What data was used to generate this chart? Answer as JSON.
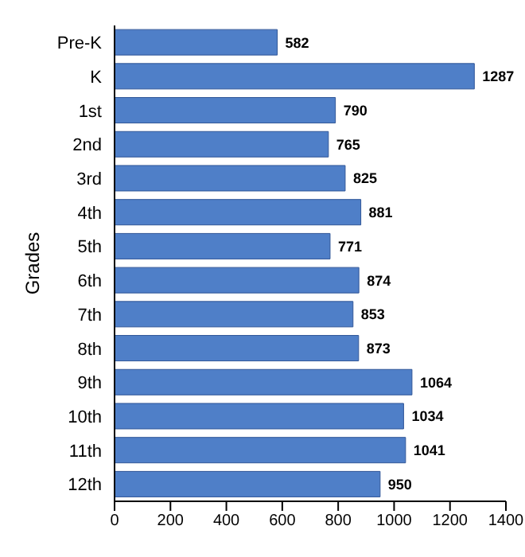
{
  "chart_data": {
    "type": "bar",
    "orientation": "horizontal",
    "ylabel": "Grades",
    "categories": [
      "Pre-K",
      "K",
      "1st",
      "2nd",
      "3rd",
      "4th",
      "5th",
      "6th",
      "7th",
      "8th",
      "9th",
      "10th",
      "11th",
      "12th"
    ],
    "values": [
      582,
      1287,
      790,
      765,
      825,
      881,
      771,
      874,
      853,
      873,
      1064,
      1034,
      1041,
      950
    ],
    "color": "#4f7fc8",
    "xlim": [
      0,
      1400
    ],
    "xticks": [
      0,
      200,
      400,
      600,
      800,
      1000,
      1200,
      1400
    ],
    "data_labels": true,
    "grid": false
  }
}
